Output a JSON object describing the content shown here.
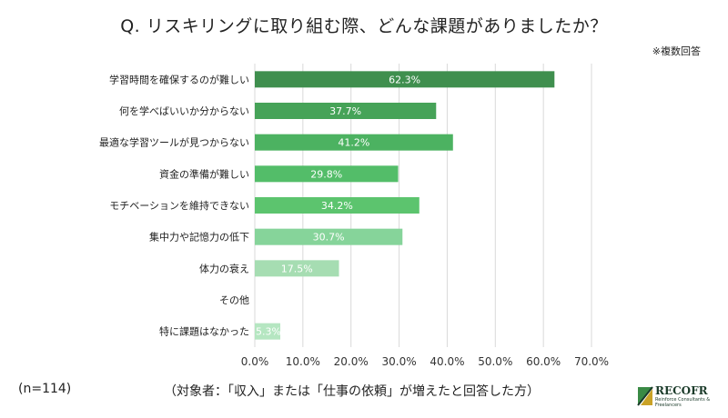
{
  "header": {
    "title": "Q. リスキリングに取り組む際、どんな課題がありましたか？",
    "note": "※複数回答"
  },
  "footer": {
    "n": "(n=114)",
    "target": "（対象者：「収入」または「仕事の依頼」が増えたと回答した方）"
  },
  "logo": {
    "name": "RECOFR",
    "tagline": "Reinforce Consultants & Freelancers"
  },
  "chart_data": {
    "type": "bar",
    "orientation": "horizontal",
    "categories": [
      "学習時間を確保するのが難しい",
      "何を学べばいいか分からない",
      "最適な学習ツールが見つからない",
      "資金の準備が難しい",
      "モチベーションを維持できない",
      "集中力や記憶力の低下",
      "体力の衰え",
      "その他",
      "特に課題はなかった"
    ],
    "values": [
      62.3,
      37.7,
      41.2,
      29.8,
      34.2,
      30.7,
      17.5,
      0.0,
      5.3
    ],
    "value_labels": [
      "62.3%",
      "37.7%",
      "41.2%",
      "29.8%",
      "34.2%",
      "30.7%",
      "17.5%",
      "",
      "5.3%"
    ],
    "colors": [
      "#3f8f4e",
      "#46a358",
      "#4cb261",
      "#53bd69",
      "#5cc46e",
      "#86d49a",
      "#a6ddb2",
      "#a6ddb2",
      "#b5e6c1"
    ],
    "xlim": [
      0,
      70
    ],
    "xticks": [
      0,
      10,
      20,
      30,
      40,
      50,
      60,
      70
    ],
    "xtick_labels": [
      "0.0%",
      "10.0%",
      "20.0%",
      "30.0%",
      "40.0%",
      "50.0%",
      "60.0%",
      "70.0%"
    ],
    "grid": true,
    "gridline_color": "#d9d9d9",
    "legend": "none"
  }
}
